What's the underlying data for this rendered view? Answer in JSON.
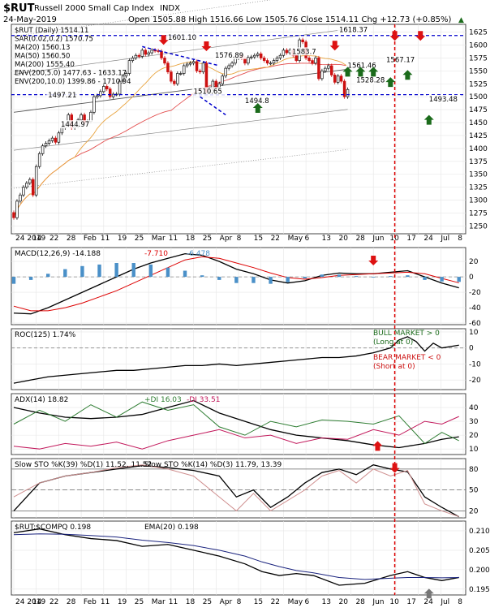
{
  "header": {
    "symbol": "$RUT",
    "name": "Russell 2000 Small Cap Index",
    "exchange": "INDX",
    "date": "24-May-2019",
    "quote_line": "Open 1505.88  High 1516.66  Low 1505.76  Close 1514.11  Chg +12.73 (+0.85%)",
    "change_marker": "▲"
  },
  "colors": {
    "candle_up": "#111111",
    "candle_down": "#cc1111",
    "ma20": "#e8a33d",
    "ma50": "#e35050",
    "ma200": "#555555",
    "env": "#888888",
    "macd_line": "#000000",
    "macd_signal": "#dd0000",
    "macd_hist": "#4a90c8",
    "roc": "#000000",
    "adx": "#000000",
    "plus_di": "#2e7d32",
    "minus_di": "#c2185b",
    "sto_k": "#000000",
    "sto_slow": "#d09090",
    "ratio": "#000000",
    "ratio_ema": "#1a237e",
    "annotation_line": "#0000cc",
    "event_line": "#dd0000",
    "arrow_up": "#1b6b1b",
    "arrow_down": "#dd1111",
    "arrow_gray": "#777777"
  },
  "chart_data": [
    {
      "type": "candlestick",
      "panel": "price",
      "legend": [
        "$RUT (Daily) 1514.11",
        "SAR(0.02,0.2) 1570.75",
        "MA(20) 1560.13",
        "MA(50) 1560.50",
        "MA(200) 1555.40",
        "ENV(200,5.0) 1477.63 - 1633.17",
        "ENV(200,10.0) 1399.86 - 1710.94"
      ],
      "x_tick_labels": [
        "24 2019",
        "14",
        "22",
        "28",
        "Feb",
        "11",
        "19",
        "25",
        "Mar",
        "11",
        "18",
        "25",
        "Apr",
        "8",
        "15",
        "22",
        "May",
        "6",
        "13",
        "20",
        "28",
        "Jun",
        "10",
        "17",
        "24",
        "Jul",
        "8"
      ],
      "y_ticks": [
        1250,
        1275,
        1300,
        1325,
        1350,
        1375,
        1400,
        1425,
        1450,
        1475,
        1500,
        1525,
        1550,
        1575,
        1600,
        1625
      ],
      "ylim": [
        1235,
        1640
      ],
      "x": [
        "2018-12-24",
        "2018-12-26",
        "2018-12-27",
        "2018-12-28",
        "2018-12-31",
        "2019-01-02",
        "2019-01-03",
        "2019-01-04",
        "2019-01-07",
        "2019-01-08",
        "2019-01-09",
        "2019-01-10",
        "2019-01-11",
        "2019-01-14",
        "2019-01-15",
        "2019-01-16",
        "2019-01-17",
        "2019-01-18",
        "2019-01-22",
        "2019-01-23",
        "2019-01-24",
        "2019-01-25",
        "2019-01-28",
        "2019-01-29",
        "2019-01-30",
        "2019-01-31",
        "2019-02-01",
        "2019-02-04",
        "2019-02-05",
        "2019-02-06",
        "2019-02-07",
        "2019-02-08",
        "2019-02-11",
        "2019-02-12",
        "2019-02-13",
        "2019-02-14",
        "2019-02-15",
        "2019-02-19",
        "2019-02-20",
        "2019-02-21",
        "2019-02-22",
        "2019-02-25",
        "2019-02-26",
        "2019-02-27",
        "2019-02-28",
        "2019-03-01",
        "2019-03-04",
        "2019-03-05",
        "2019-03-06",
        "2019-03-07",
        "2019-03-08",
        "2019-03-11",
        "2019-03-12",
        "2019-03-13",
        "2019-03-14",
        "2019-03-15",
        "2019-03-18",
        "2019-03-19",
        "2019-03-20",
        "2019-03-21",
        "2019-03-22",
        "2019-03-25",
        "2019-03-26",
        "2019-03-27",
        "2019-03-28",
        "2019-03-29",
        "2019-04-01",
        "2019-04-02",
        "2019-04-03",
        "2019-04-04",
        "2019-04-05",
        "2019-04-08",
        "2019-04-09",
        "2019-04-10",
        "2019-04-11",
        "2019-04-12",
        "2019-04-15",
        "2019-04-16",
        "2019-04-17",
        "2019-04-18",
        "2019-04-22",
        "2019-04-23",
        "2019-04-24",
        "2019-04-25",
        "2019-04-26",
        "2019-04-29",
        "2019-04-30",
        "2019-05-01",
        "2019-05-02",
        "2019-05-03",
        "2019-05-06",
        "2019-05-07",
        "2019-05-08",
        "2019-05-09",
        "2019-05-10",
        "2019-05-13",
        "2019-05-14",
        "2019-05-15",
        "2019-05-16",
        "2019-05-17",
        "2019-05-20",
        "2019-05-21",
        "2019-05-22",
        "2019-05-23",
        "2019-05-24"
      ],
      "close": [
        1266,
        1298,
        1310,
        1325,
        1333,
        1340,
        1310,
        1365,
        1390,
        1405,
        1410,
        1415,
        1420,
        1412,
        1430,
        1440,
        1445,
        1465,
        1440,
        1443,
        1455,
        1465,
        1450,
        1452,
        1470,
        1500,
        1502,
        1510,
        1520,
        1515,
        1500,
        1505,
        1505,
        1530,
        1540,
        1545,
        1570,
        1575,
        1580,
        1578,
        1590,
        1582,
        1585,
        1590,
        1589,
        1588,
        1575,
        1565,
        1548,
        1530,
        1525,
        1545,
        1545,
        1560,
        1563,
        1565,
        1568,
        1550,
        1548,
        1565,
        1510,
        1515,
        1530,
        1518,
        1525,
        1540,
        1555,
        1560,
        1565,
        1575,
        1580,
        1575,
        1565,
        1576,
        1577,
        1580,
        1583,
        1575,
        1570,
        1565,
        1565,
        1570,
        1575,
        1580,
        1590,
        1585,
        1590,
        1580,
        1570,
        1610,
        1606,
        1575,
        1570,
        1565,
        1575,
        1535,
        1550,
        1555,
        1560,
        1542,
        1528,
        1540,
        1530,
        1500,
        1514
      ]
    },
    {
      "type": "line",
      "panel": "macd",
      "legend": [
        "MACD(12,26,9) -14.188",
        "-7.710",
        "-6.478"
      ],
      "y_ticks": [
        20,
        0,
        -20,
        -40,
        -60
      ],
      "ylim": [
        -62,
        38
      ],
      "series": [
        {
          "name": "MACD(12,26,9)",
          "x": [
            0,
            4,
            8,
            12,
            16,
            20,
            24,
            28,
            32,
            36,
            40,
            44,
            48,
            52,
            56,
            60,
            64,
            68,
            72,
            76,
            80,
            84,
            88,
            92,
            96,
            100,
            104
          ],
          "values": [
            -47,
            -48,
            -40,
            -30,
            -20,
            -10,
            0,
            10,
            18,
            24,
            30,
            28,
            20,
            10,
            4,
            -4,
            -8,
            -5,
            2,
            5,
            4,
            4,
            6,
            8,
            0,
            -8,
            -14.19
          ]
        },
        {
          "name": "Signal",
          "x": [
            0,
            4,
            8,
            12,
            16,
            20,
            24,
            28,
            32,
            36,
            40,
            44,
            48,
            52,
            56,
            60,
            64,
            68,
            72,
            76,
            80,
            84,
            88,
            92,
            96,
            100,
            104
          ],
          "values": [
            -38,
            -44,
            -44,
            -40,
            -34,
            -26,
            -18,
            -8,
            2,
            12,
            22,
            26,
            24,
            18,
            12,
            5,
            -1,
            -3,
            -1,
            2,
            3,
            4,
            5,
            6,
            4,
            -2,
            -7.71
          ]
        },
        {
          "name": "Histogram",
          "x": [
            0,
            4,
            8,
            12,
            16,
            20,
            24,
            28,
            32,
            36,
            40,
            44,
            48,
            52,
            56,
            60,
            64,
            68,
            72,
            76,
            80,
            84,
            88,
            92,
            96,
            100,
            104
          ],
          "values": [
            -9,
            -4,
            4,
            10,
            14,
            16,
            18,
            18,
            16,
            12,
            8,
            2,
            -4,
            -8,
            -8,
            -9,
            -7,
            -2,
            3,
            3,
            1,
            0,
            1,
            2,
            -4,
            -6,
            -6.48
          ]
        }
      ]
    },
    {
      "type": "line",
      "panel": "roc",
      "legend": [
        "ROC(125) 1.74%"
      ],
      "y_ticks": [
        10,
        0,
        -10,
        -20
      ],
      "ylim": [
        -26,
        12
      ],
      "series": [
        {
          "name": "ROC(125)",
          "x": [
            0,
            4,
            8,
            12,
            16,
            20,
            24,
            28,
            32,
            36,
            40,
            44,
            48,
            52,
            56,
            60,
            64,
            68,
            72,
            76,
            80,
            84,
            88,
            90,
            92,
            94,
            96,
            98,
            100,
            104
          ],
          "values": [
            -22,
            -20,
            -18,
            -17,
            -16,
            -15,
            -14,
            -14,
            -13,
            -12,
            -11,
            -11,
            -10,
            -11,
            -10,
            -9,
            -8,
            -7,
            -6,
            -6,
            -5,
            -3,
            0,
            5,
            7,
            4,
            -2,
            3,
            0,
            1.74
          ]
        }
      ],
      "annotations": [
        "BULL MARKET > 0",
        "(Long at 0)",
        "BEAR MARKET < 0",
        "(Short at 0)"
      ]
    },
    {
      "type": "line",
      "panel": "adx",
      "legend": [
        "ADX(14) 18.82",
        "+DI 16.03",
        "-DI 33.51"
      ],
      "y_ticks": [
        40,
        30,
        20,
        10
      ],
      "ylim": [
        6,
        50
      ],
      "series": [
        {
          "name": "ADX(14)",
          "x": [
            0,
            6,
            12,
            18,
            24,
            30,
            36,
            42,
            48,
            54,
            60,
            66,
            72,
            78,
            84,
            90,
            96,
            100,
            104
          ],
          "values": [
            40,
            36,
            33,
            32,
            33,
            35,
            40,
            45,
            36,
            30,
            24,
            20,
            18,
            16,
            13,
            11,
            14,
            17,
            18.82
          ]
        },
        {
          "name": "+DI",
          "x": [
            0,
            6,
            12,
            18,
            24,
            30,
            36,
            42,
            48,
            54,
            60,
            66,
            72,
            78,
            84,
            90,
            96,
            100,
            104
          ],
          "values": [
            28,
            38,
            30,
            42,
            33,
            44,
            38,
            42,
            26,
            20,
            30,
            26,
            31,
            30,
            28,
            34,
            14,
            22,
            16.03
          ]
        },
        {
          "name": "-DI",
          "x": [
            0,
            6,
            12,
            18,
            24,
            30,
            36,
            42,
            48,
            54,
            60,
            66,
            72,
            78,
            84,
            90,
            96,
            100,
            104
          ],
          "values": [
            12,
            10,
            14,
            12,
            15,
            10,
            16,
            20,
            24,
            18,
            20,
            14,
            18,
            17,
            24,
            20,
            30,
            28,
            33.51
          ]
        }
      ]
    },
    {
      "type": "line",
      "panel": "stochastic",
      "legend": [
        "Slow STO %K(39) %D(1) 11.52, 11.52",
        "Slow STO %K(14) %D(3) 11.79, 13.39"
      ],
      "y_ticks": [
        80,
        50,
        20
      ],
      "ylim": [
        10,
        95
      ],
      "series": [
        {
          "name": "Slow STO %K(39)",
          "x": [
            0,
            6,
            12,
            18,
            24,
            30,
            36,
            42,
            48,
            52,
            56,
            60,
            64,
            68,
            72,
            76,
            80,
            84,
            88,
            92,
            96,
            100,
            104
          ],
          "values": [
            20,
            60,
            70,
            75,
            80,
            85,
            82,
            78,
            70,
            40,
            50,
            25,
            40,
            60,
            75,
            80,
            72,
            86,
            80,
            76,
            40,
            25,
            11.52
          ]
        },
        {
          "name": "Slow STO %K(14)",
          "x": [
            0,
            6,
            12,
            18,
            24,
            30,
            36,
            42,
            48,
            52,
            56,
            60,
            64,
            68,
            72,
            76,
            80,
            84,
            88,
            92,
            96,
            100,
            104
          ],
          "values": [
            40,
            60,
            70,
            75,
            82,
            86,
            80,
            70,
            40,
            20,
            45,
            20,
            35,
            50,
            70,
            78,
            60,
            80,
            70,
            78,
            30,
            20,
            11.79
          ]
        }
      ]
    },
    {
      "type": "line",
      "panel": "ratio",
      "legend": [
        "$RUT:$COMPQ 0.198",
        "EMA(20) 0.198"
      ],
      "y_ticks": [
        0.21,
        0.205,
        0.2,
        0.195
      ],
      "ylim": [
        0.1935,
        0.2125
      ],
      "series": [
        {
          "name": "$RUT:$COMPQ",
          "x": [
            0,
            6,
            12,
            18,
            24,
            30,
            36,
            42,
            48,
            54,
            58,
            62,
            66,
            70,
            76,
            82,
            88,
            92,
            96,
            100,
            104
          ],
          "values": [
            0.2095,
            0.2105,
            0.209,
            0.208,
            0.2075,
            0.206,
            0.2065,
            0.205,
            0.2035,
            0.2015,
            0.1995,
            0.1985,
            0.199,
            0.1985,
            0.196,
            0.1965,
            0.1985,
            0.1995,
            0.198,
            0.1972,
            0.198
          ]
        },
        {
          "name": "EMA(20)",
          "x": [
            0,
            6,
            12,
            18,
            24,
            30,
            36,
            42,
            48,
            54,
            58,
            62,
            66,
            70,
            76,
            82,
            88,
            92,
            96,
            100,
            104
          ],
          "values": [
            0.209,
            0.2092,
            0.2091,
            0.2088,
            0.2084,
            0.2076,
            0.207,
            0.2062,
            0.205,
            0.2035,
            0.202,
            0.2008,
            0.1998,
            0.1992,
            0.198,
            0.1975,
            0.1978,
            0.198,
            0.198,
            0.1979,
            0.198
          ]
        }
      ]
    }
  ],
  "price_labels": [
    "1601.10",
    "1583.7",
    "1618.37",
    "1576.89",
    "1567.17",
    "1497.21",
    "1510.65",
    "1494.8",
    "1528.28",
    "1444.97",
    "1493.48",
    "1561.46"
  ],
  "price_lines": [
    {
      "name": "resistance",
      "value": 1618.37
    },
    {
      "name": "support",
      "value": 1504
    }
  ],
  "trend_channel": [
    {
      "name": "upper",
      "x": [
        40,
        64
      ],
      "values": [
        1597,
        1560
      ]
    },
    {
      "name": "lower",
      "x": [
        58,
        66
      ],
      "values": [
        1500,
        1465
      ]
    }
  ],
  "event_line_x": 89,
  "arrows_down": [
    {
      "panel": "price",
      "x": 35,
      "value": 1605
    },
    {
      "panel": "price",
      "x": 45,
      "value": 1593
    },
    {
      "panel": "price",
      "x": 75,
      "value": 1594
    },
    {
      "panel": "price",
      "x": 89,
      "value": 1613
    },
    {
      "panel": "price",
      "x": 95,
      "value": 1613
    },
    {
      "panel": "macd",
      "x": 84,
      "value": 18
    },
    {
      "panel": "stochastic",
      "x": 89,
      "value": 78
    }
  ],
  "arrows_up": [
    {
      "panel": "price",
      "x": 57,
      "value": 1483
    },
    {
      "panel": "price",
      "x": 78,
      "value": 1553
    },
    {
      "panel": "price",
      "x": 81,
      "value": 1553
    },
    {
      "panel": "price",
      "x": 84,
      "value": 1553
    },
    {
      "panel": "price",
      "x": 88,
      "value": 1533
    },
    {
      "panel": "price",
      "x": 92,
      "value": 1547
    },
    {
      "panel": "price",
      "x": 97,
      "value": 1460
    },
    {
      "panel": "adx",
      "x": 85,
      "value": 14
    },
    {
      "panel": "ratio",
      "x": 97,
      "value": 0.1945,
      "gray": true
    }
  ]
}
